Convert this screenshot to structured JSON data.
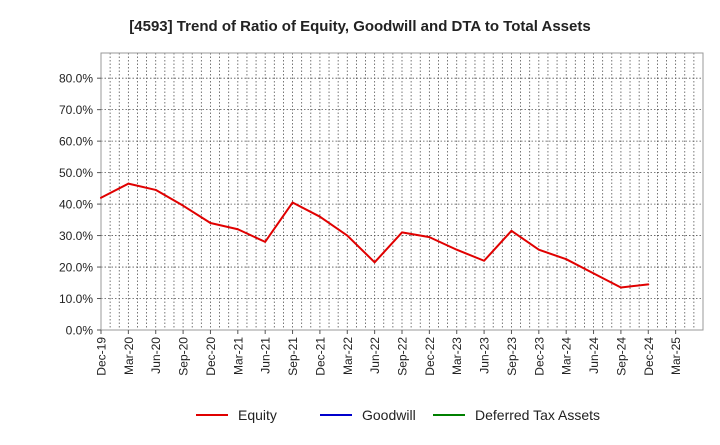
{
  "chart_data": {
    "type": "line",
    "title": "[4593]  Trend of Ratio of Equity, Goodwill and DTA to Total Assets",
    "xlabel": "",
    "ylabel": "",
    "ylim": [
      0,
      88
    ],
    "y_ticks": [
      0,
      10,
      20,
      30,
      40,
      50,
      60,
      70,
      80
    ],
    "y_tick_labels": [
      "0.0%",
      "10.0%",
      "20.0%",
      "30.0%",
      "40.0%",
      "50.0%",
      "60.0%",
      "70.0%",
      "80.0%"
    ],
    "x_tick_labels": [
      "Dec-19",
      "Mar-20",
      "Jun-20",
      "Sep-20",
      "Dec-20",
      "Mar-21",
      "Jun-21",
      "Sep-21",
      "Dec-21",
      "Mar-22",
      "Jun-22",
      "Sep-22",
      "Dec-22",
      "Mar-23",
      "Jun-23",
      "Sep-23",
      "Dec-23",
      "Mar-24",
      "Jun-24",
      "Sep-24",
      "Dec-24",
      "Mar-25"
    ],
    "grid": true,
    "legend_position": "bottom",
    "series": [
      {
        "name": "Equity",
        "color": "#e00000",
        "values": [
          42.0,
          46.5,
          44.5,
          39.5,
          34.0,
          32.0,
          28.0,
          40.5,
          36.0,
          30.0,
          21.5,
          31.0,
          29.5,
          25.5,
          22.0,
          31.5,
          25.5,
          22.5,
          18.0,
          13.5,
          14.5,
          null
        ]
      },
      {
        "name": "Goodwill",
        "color": "#0000cc",
        "values": []
      },
      {
        "name": "Deferred Tax Assets",
        "color": "#008000",
        "values": []
      }
    ]
  }
}
